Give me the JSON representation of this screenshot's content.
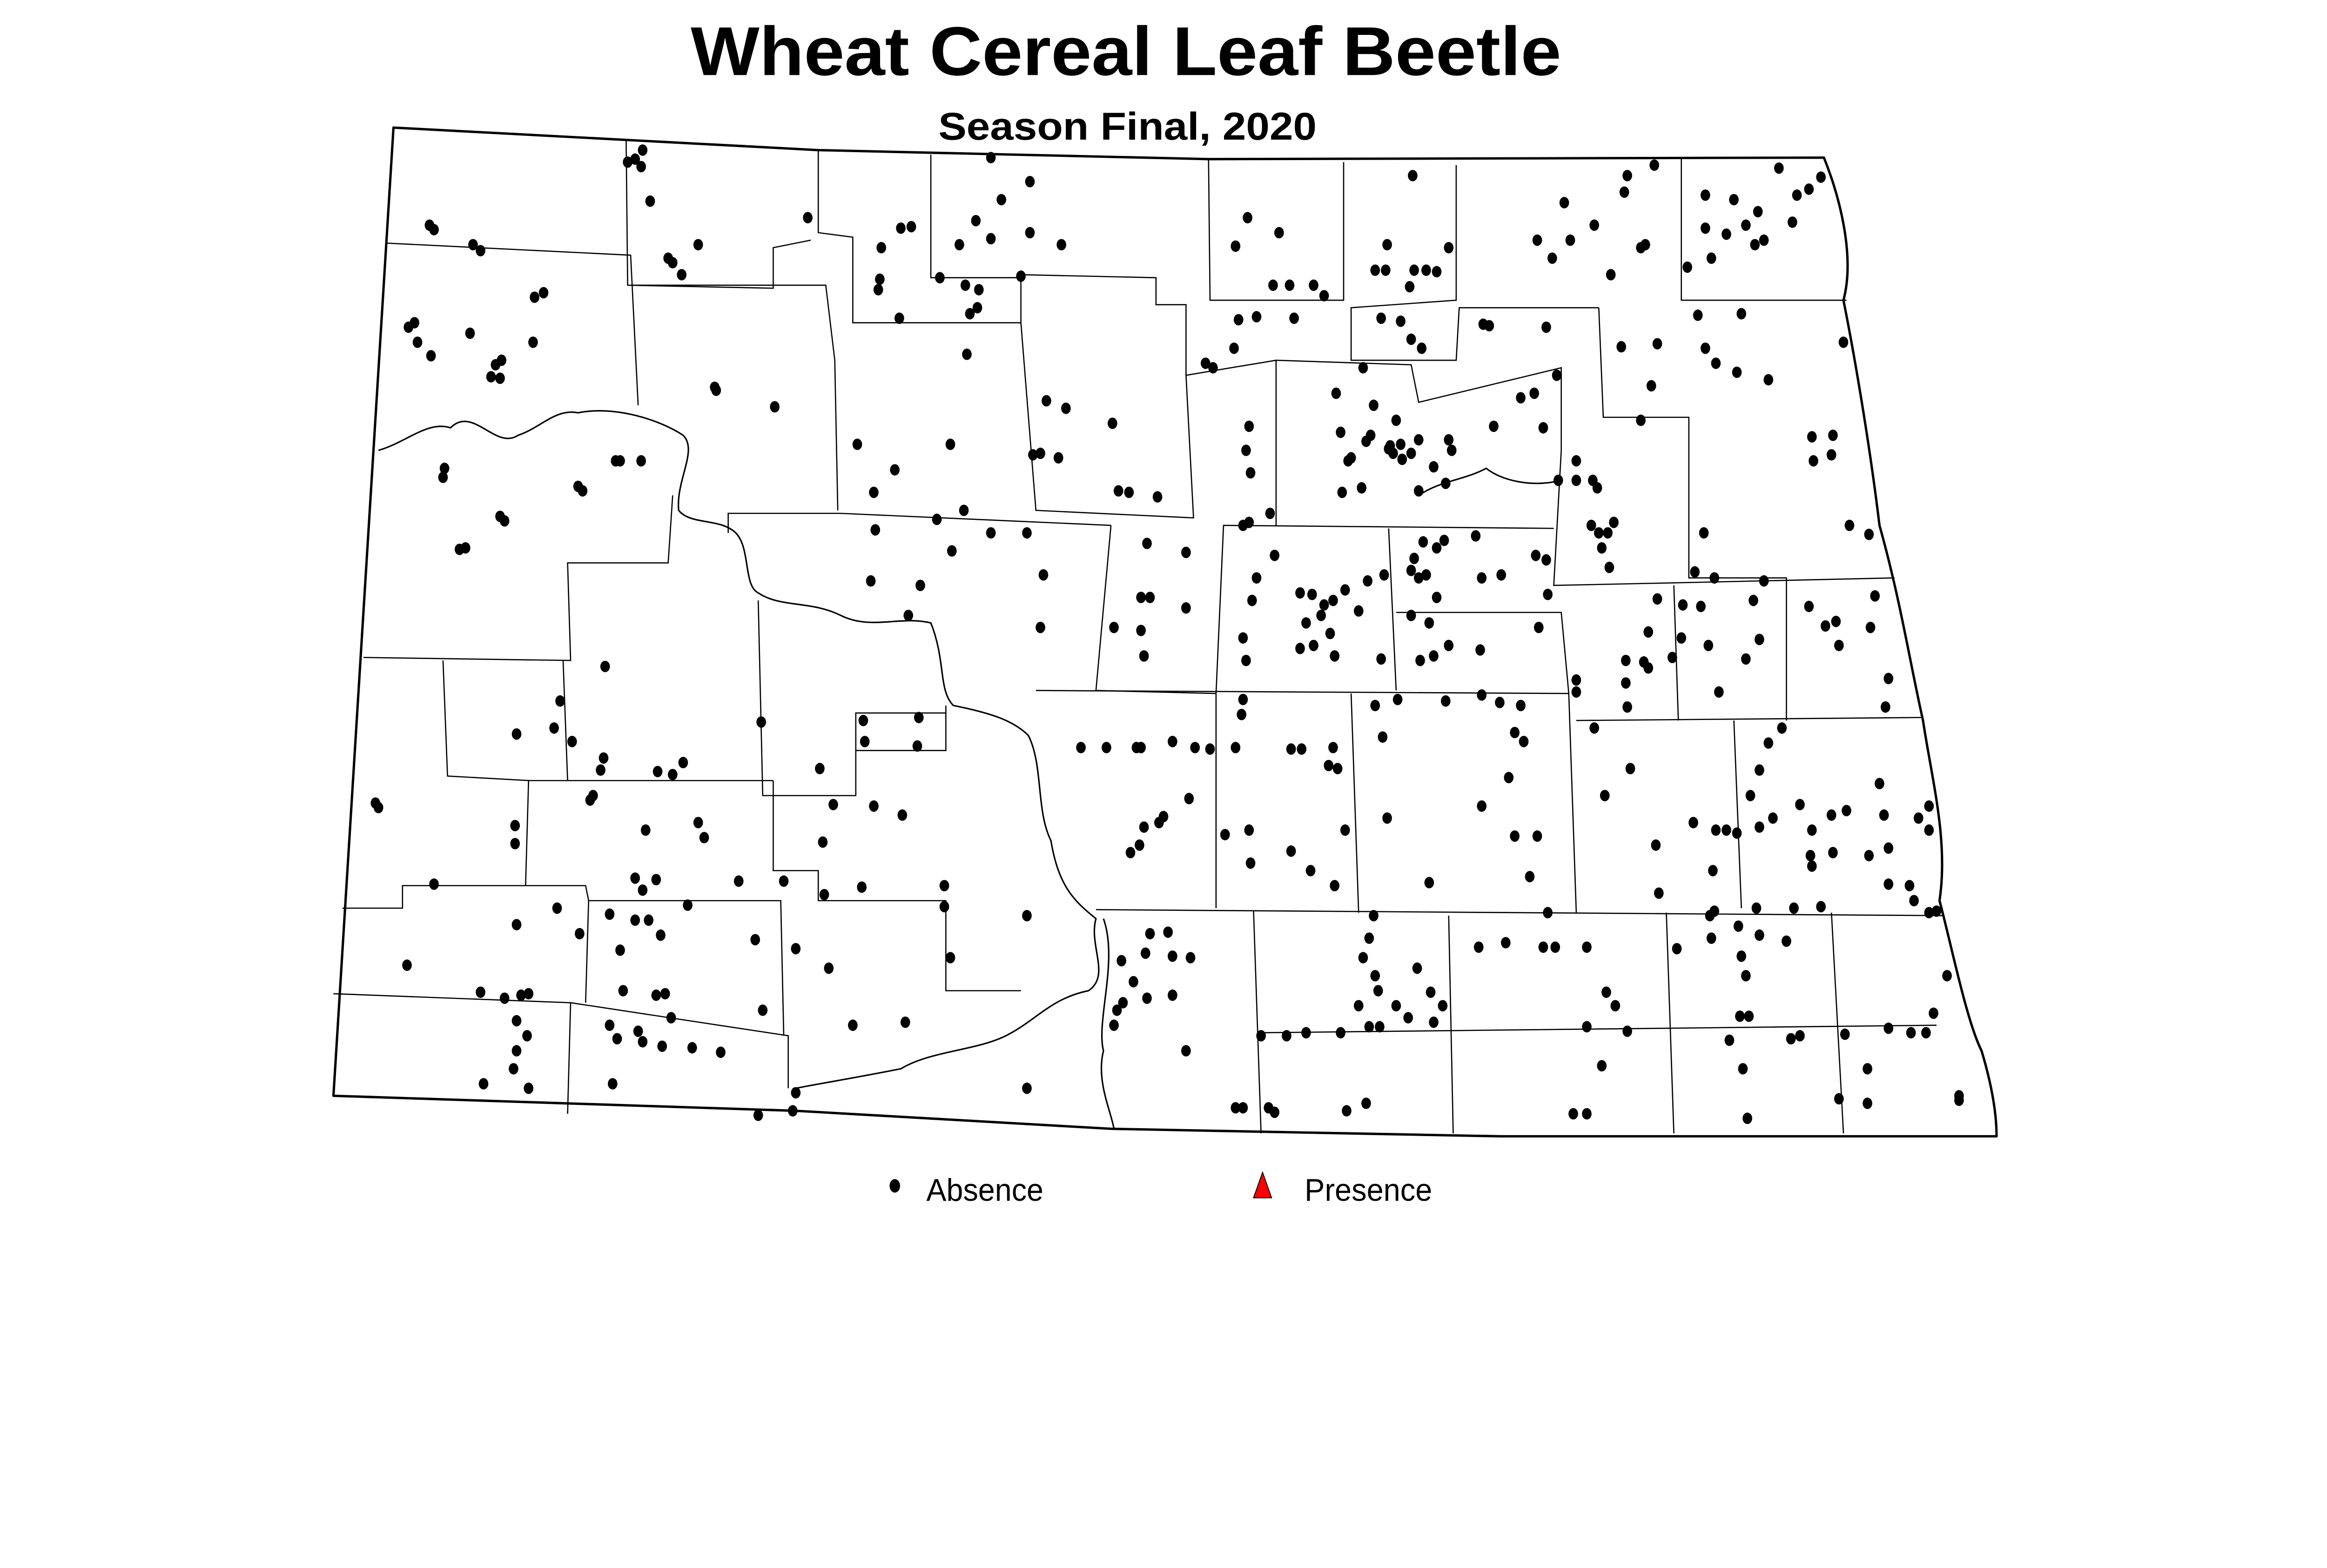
{
  "title": "Wheat Cereal Leaf Beetle",
  "subtitle": "Season Final, 2020",
  "legend": {
    "items": [
      {
        "label": "Absence",
        "symbol": "circle",
        "color": "#000000"
      },
      {
        "label": "Presence",
        "symbol": "triangle",
        "color": "#ff0000"
      }
    ]
  },
  "map": {
    "region": "North Dakota counties",
    "absence_color": "#000000",
    "presence_color": "#ff0000",
    "background": "#ffffff"
  }
}
